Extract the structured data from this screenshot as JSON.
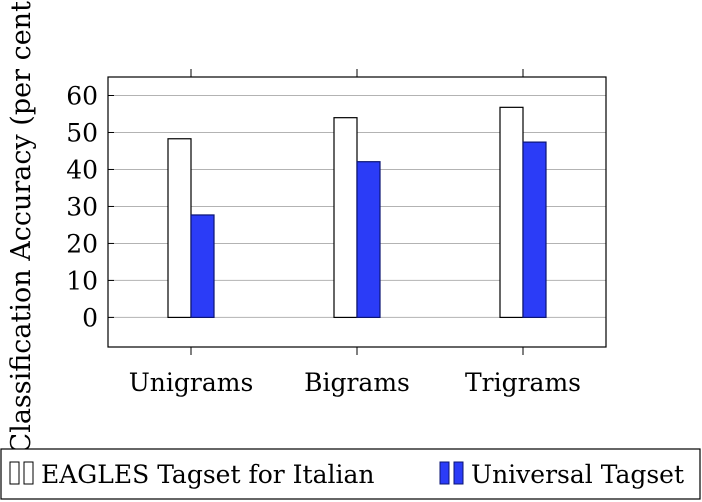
{
  "chart_data": {
    "type": "bar",
    "title": "",
    "xlabel": "",
    "ylabel": "Classification Accuracy (per cent)",
    "categories": [
      "Unigrams",
      "Bigrams",
      "Trigrams"
    ],
    "series": [
      {
        "name": "EAGLES Tagset for Italian",
        "values": [
          48.3,
          54.0,
          56.8
        ],
        "color": "#ffffff"
      },
      {
        "name": "Universal Tagset",
        "values": [
          27.7,
          42.1,
          47.4
        ],
        "color": "#2b3cf7"
      }
    ],
    "ylim": [
      -8,
      65
    ],
    "yticks": [
      0,
      10,
      20,
      30,
      40,
      50,
      60
    ],
    "grid": true,
    "legend_position": "bottom"
  }
}
